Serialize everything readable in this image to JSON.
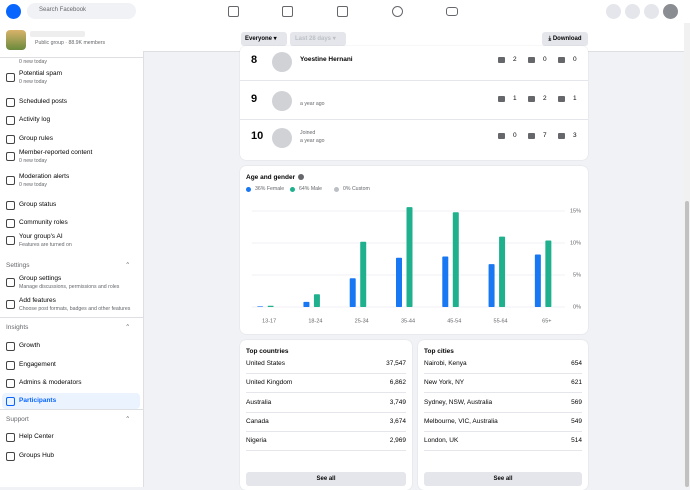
{
  "nav": {
    "search": "Search Facebook"
  },
  "sidebar": {
    "group_meta": "Public group · 88.9K members",
    "items": [
      {
        "sub": "0 new today"
      },
      {
        "label": "Potential spam",
        "sub": "0 new today"
      },
      {
        "label": "Scheduled posts"
      },
      {
        "label": "Activity log"
      },
      {
        "label": "Group rules"
      },
      {
        "label": "Member-reported content",
        "sub": "0 new today"
      },
      {
        "label": "Moderation alerts",
        "sub": "0 new today"
      },
      {
        "label": "Group status"
      },
      {
        "label": "Community roles"
      },
      {
        "label": "Your group's AI",
        "sub": "Features are turned on"
      },
      {
        "header": "Settings"
      },
      {
        "label": "Group settings",
        "sub": "Manage discussions, permissions and roles"
      },
      {
        "label": "Add features",
        "sub": "Choose post formats, badges and other features"
      },
      {
        "header": "Insights"
      },
      {
        "label": "Growth"
      },
      {
        "label": "Engagement"
      },
      {
        "label": "Admins & moderators"
      },
      {
        "label": "Participants"
      },
      {
        "header": "Support"
      },
      {
        "label": "Help Center"
      },
      {
        "label": "Groups Hub"
      }
    ]
  },
  "filters": {
    "audience": "Everyone",
    "range": "Last 28 days",
    "download": "Download"
  },
  "top_contributors": [
    {
      "rank": "8",
      "name": "Yoestine Hernani",
      "stats": [
        "2",
        "0",
        "0"
      ]
    },
    {
      "rank": "9",
      "sub": "a year ago",
      "stats": [
        "1",
        "2",
        "1"
      ]
    },
    {
      "rank": "10",
      "name": "Joined",
      "sub": "a year ago",
      "stats": [
        "0",
        "7",
        "3"
      ]
    }
  ],
  "chart_data": {
    "type": "bar",
    "title": "Age and gender",
    "categories": [
      "13-17",
      "18-24",
      "25-34",
      "35-44",
      "45-54",
      "55-64",
      "65+"
    ],
    "series": [
      {
        "name": "36% Female",
        "color": "#1877f2",
        "values": [
          0.1,
          0.8,
          4.5,
          7.7,
          7.9,
          6.7,
          8.2
        ]
      },
      {
        "name": "64% Male",
        "color": "#1fb08e",
        "values": [
          0.2,
          2.0,
          10.2,
          15.6,
          14.8,
          11.0,
          10.4
        ]
      },
      {
        "name": "0% Custom",
        "color": "#bcc0c4",
        "values": [
          0,
          0,
          0,
          0,
          0,
          0,
          0
        ]
      }
    ],
    "ylim": [
      0,
      16
    ],
    "yticks": [
      {
        "value": 0,
        "label": "0%"
      },
      {
        "value": 5,
        "label": "5%"
      },
      {
        "value": 10,
        "label": "10%"
      },
      {
        "value": 15,
        "label": "15%"
      }
    ],
    "grid": true
  },
  "top_countries": {
    "title": "Top countries",
    "rows": [
      [
        "United States",
        "37,547"
      ],
      [
        "United Kingdom",
        "6,862"
      ],
      [
        "Australia",
        "3,749"
      ],
      [
        "Canada",
        "3,674"
      ],
      [
        "Nigeria",
        "2,969"
      ]
    ],
    "button": "See all"
  },
  "top_cities": {
    "title": "Top cities",
    "rows": [
      [
        "Nairobi, Kenya",
        "654"
      ],
      [
        "New York, NY",
        "621"
      ],
      [
        "Sydney, NSW, Australia",
        "569"
      ],
      [
        "Melbourne, VIC, Australia",
        "549"
      ],
      [
        "London, UK",
        "514"
      ]
    ],
    "button": "See all"
  }
}
